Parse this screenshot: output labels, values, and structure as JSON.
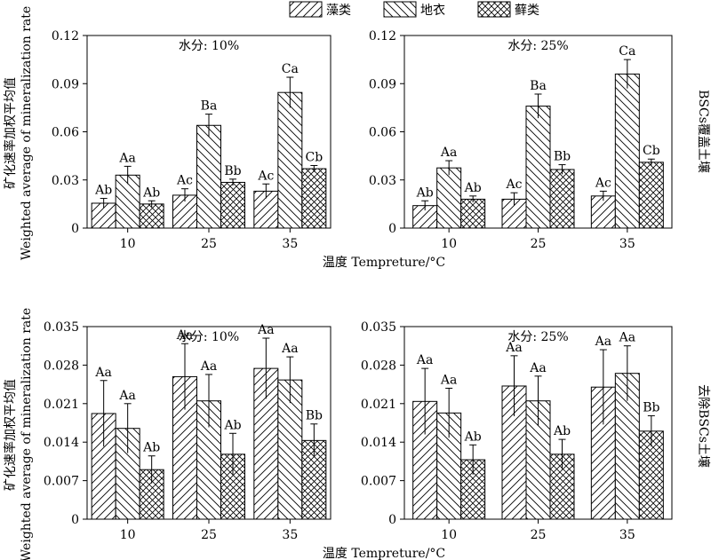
{
  "legend": {
    "items": [
      {
        "label": "藻类",
        "pattern": "hatch-fwd"
      },
      {
        "label": "地衣",
        "pattern": "hatch-back"
      },
      {
        "label": "藓类",
        "pattern": "crosshatch"
      }
    ]
  },
  "shared": {
    "ylabel_zh": "矿化速率加权平均值",
    "ylabel_en": "Weighted average of mineralization rate",
    "xlabel": "温度 Tempreture/°C"
  },
  "rows": [
    {
      "side_label": "BSCs覆盖土壤"
    },
    {
      "side_label": "去除BSCs土壤"
    }
  ],
  "chart_data": [
    {
      "type": "bar",
      "title": "水分: 10%",
      "categories": [
        "10",
        "25",
        "35"
      ],
      "ylim": [
        0,
        0.12
      ],
      "yticks": [
        "0",
        "0.03",
        "0.06",
        "0.09",
        "0.12"
      ],
      "series": [
        {
          "name": "藻类",
          "values": [
            0.0155,
            0.0205,
            0.023
          ],
          "errors": [
            0.003,
            0.004,
            0.0045
          ],
          "labels": [
            "Ab",
            "Ac",
            "Ac"
          ]
        },
        {
          "name": "地衣",
          "values": [
            0.033,
            0.064,
            0.0845
          ],
          "errors": [
            0.0055,
            0.007,
            0.0095
          ],
          "labels": [
            "Aa",
            "Ba",
            "Ca"
          ]
        },
        {
          "name": "藓类",
          "values": [
            0.015,
            0.0285,
            0.037
          ],
          "errors": [
            0.002,
            0.002,
            0.002
          ],
          "labels": [
            "Ab",
            "Bb",
            "Cb"
          ]
        }
      ]
    },
    {
      "type": "bar",
      "title": "水分: 25%",
      "categories": [
        "10",
        "25",
        "35"
      ],
      "ylim": [
        0,
        0.12
      ],
      "yticks": [
        "0",
        "0.03",
        "0.06",
        "0.09",
        "0.12"
      ],
      "series": [
        {
          "name": "藻类",
          "values": [
            0.014,
            0.018,
            0.02
          ],
          "errors": [
            0.003,
            0.004,
            0.003
          ],
          "labels": [
            "Ab",
            "Ac",
            "Ac"
          ]
        },
        {
          "name": "地衣",
          "values": [
            0.0375,
            0.076,
            0.096
          ],
          "errors": [
            0.0045,
            0.0075,
            0.009
          ],
          "labels": [
            "Aa",
            "Ba",
            "Ca"
          ]
        },
        {
          "name": "藓类",
          "values": [
            0.018,
            0.0365,
            0.041
          ],
          "errors": [
            0.002,
            0.003,
            0.002
          ],
          "labels": [
            "Ab",
            "Bb",
            "Cb"
          ]
        }
      ]
    },
    {
      "type": "bar",
      "title": "水分: 10%",
      "categories": [
        "10",
        "25",
        "35"
      ],
      "ylim": [
        0,
        0.035
      ],
      "yticks": [
        "0",
        "0.007",
        "0.014",
        "0.021",
        "0.028",
        "0.035"
      ],
      "series": [
        {
          "name": "藻类",
          "values": [
            0.0192,
            0.0259,
            0.0274
          ],
          "errors": [
            0.006,
            0.006,
            0.0055
          ],
          "labels": [
            "Aa",
            "Aa",
            "Aa"
          ]
        },
        {
          "name": "地衣",
          "values": [
            0.0165,
            0.0215,
            0.0253
          ],
          "errors": [
            0.0045,
            0.0048,
            0.0042
          ],
          "labels": [
            "Aa",
            "Aa",
            "Aa"
          ]
        },
        {
          "name": "藓类",
          "values": [
            0.009,
            0.0118,
            0.0143
          ],
          "errors": [
            0.0025,
            0.0038,
            0.003
          ],
          "labels": [
            "Ab",
            "Ab",
            "Bb"
          ]
        }
      ]
    },
    {
      "type": "bar",
      "title": "水分: 25%",
      "categories": [
        "10",
        "25",
        "35"
      ],
      "ylim": [
        0,
        0.035
      ],
      "yticks": [
        "0",
        "0.007",
        "0.014",
        "0.021",
        "0.028",
        "0.035"
      ],
      "series": [
        {
          "name": "藻类",
          "values": [
            0.0214,
            0.0242,
            0.024
          ],
          "errors": [
            0.006,
            0.0055,
            0.0068
          ],
          "labels": [
            "Aa",
            "Aa",
            "Aa"
          ]
        },
        {
          "name": "地衣",
          "values": [
            0.0193,
            0.0215,
            0.0265
          ],
          "errors": [
            0.0045,
            0.0045,
            0.005
          ],
          "labels": [
            "Aa",
            "Aa",
            "Aa"
          ]
        },
        {
          "name": "藓类",
          "values": [
            0.0108,
            0.0118,
            0.016
          ],
          "errors": [
            0.0027,
            0.0027,
            0.0028
          ],
          "labels": [
            "Ab",
            "Ab",
            "Bb"
          ]
        }
      ]
    }
  ]
}
